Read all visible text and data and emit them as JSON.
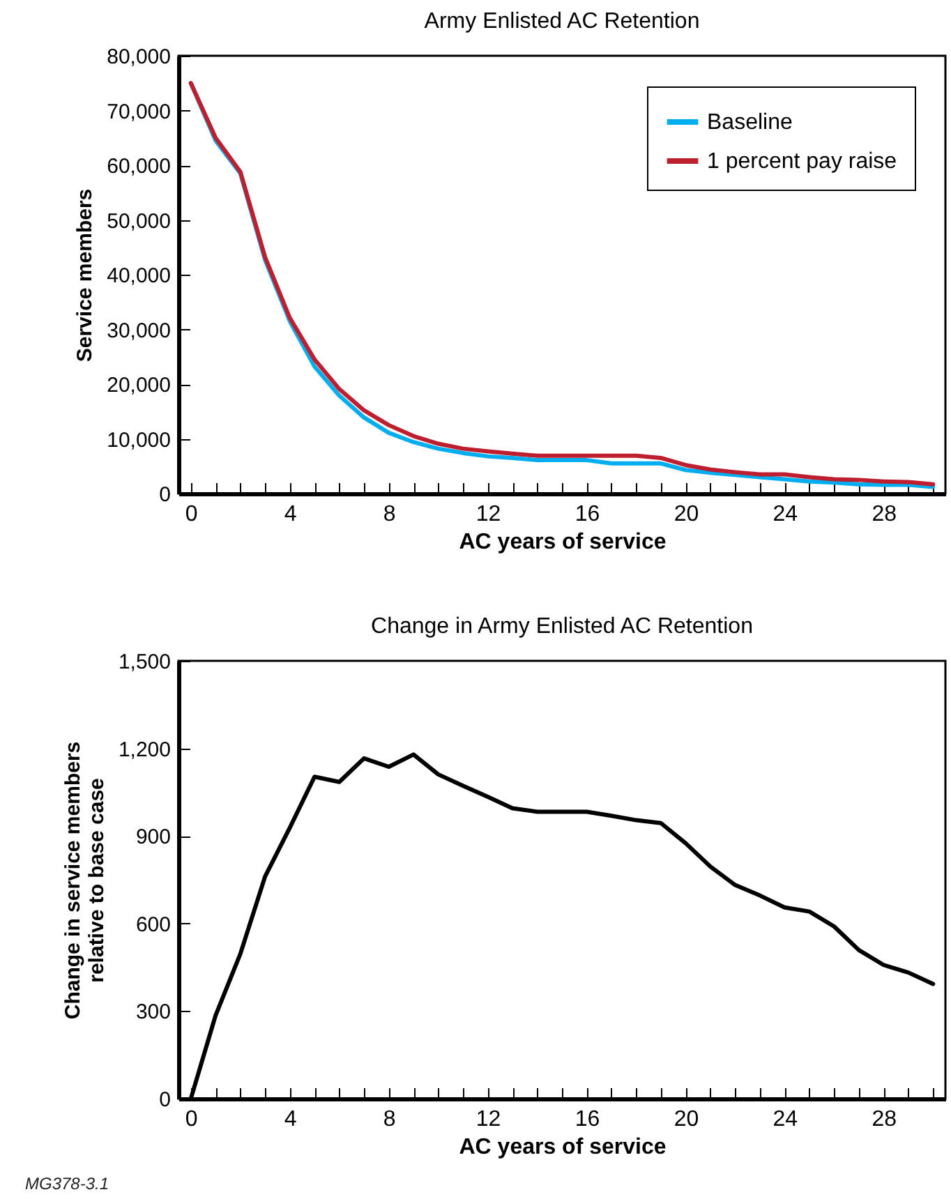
{
  "chart_data": [
    {
      "type": "line",
      "title": "Army Enlisted AC Retention",
      "xlabel": "AC years of service",
      "ylabel": "Service members",
      "x": [
        0,
        1,
        2,
        3,
        4,
        5,
        6,
        7,
        8,
        9,
        10,
        11,
        12,
        13,
        14,
        15,
        16,
        17,
        18,
        19,
        20,
        21,
        22,
        23,
        24,
        25,
        26,
        27,
        28,
        29,
        30
      ],
      "xlim": [
        -0.5,
        30.5
      ],
      "ylim": [
        0,
        80000
      ],
      "xticks": [
        0,
        {
          "value": 1,
          "label": null
        },
        {
          "value": 2,
          "label": null
        },
        {
          "value": 3,
          "label": null
        },
        4,
        {
          "value": 5,
          "label": null
        },
        {
          "value": 6,
          "label": null
        },
        {
          "value": 7,
          "label": null
        },
        8,
        {
          "value": 9,
          "label": null
        },
        {
          "value": 10,
          "label": null
        },
        {
          "value": 11,
          "label": null
        },
        12,
        {
          "value": 13,
          "label": null
        },
        {
          "value": 14,
          "label": null
        },
        {
          "value": 15,
          "label": null
        },
        16,
        {
          "value": 17,
          "label": null
        },
        {
          "value": 18,
          "label": null
        },
        {
          "value": 19,
          "label": null
        },
        20,
        {
          "value": 21,
          "label": null
        },
        {
          "value": 22,
          "label": null
        },
        {
          "value": 23,
          "label": null
        },
        24,
        {
          "value": 25,
          "label": null
        },
        {
          "value": 26,
          "label": null
        },
        {
          "value": 27,
          "label": null
        },
        28,
        {
          "value": 29,
          "label": null
        },
        {
          "value": 30,
          "label": null
        }
      ],
      "yticks": [
        0,
        {
          "value": 10000,
          "label": "10,000"
        },
        {
          "value": 20000,
          "label": "20,000"
        },
        {
          "value": 30000,
          "label": "30,000"
        },
        {
          "value": 40000,
          "label": "40,000"
        },
        {
          "value": 50000,
          "label": "50,000"
        },
        {
          "value": 60000,
          "label": "60,000"
        },
        {
          "value": 70000,
          "label": "70,000"
        },
        {
          "value": 80000,
          "label": "80,000"
        }
      ],
      "legend": "top right",
      "marker": "none",
      "line_style": "solid",
      "series": [
        {
          "name": "Baseline",
          "color": "#00aeef",
          "values": [
            75000,
            64500,
            58500,
            42700,
            31500,
            23200,
            17900,
            13900,
            11100,
            9400,
            8200,
            7400,
            6800,
            6500,
            6100,
            6100,
            6100,
            5500,
            5500,
            5500,
            4300,
            3800,
            3400,
            3000,
            2600,
            2200,
            2000,
            1700,
            1600,
            1600,
            1200
          ]
        },
        {
          "name": "1 percent pay raise",
          "color": "#be1e2d",
          "values": [
            75000,
            65000,
            58800,
            43200,
            32100,
            24500,
            19100,
            15200,
            12500,
            10500,
            9100,
            8200,
            7700,
            7300,
            6900,
            6900,
            6900,
            6900,
            6900,
            6500,
            5200,
            4400,
            3900,
            3500,
            3500,
            3000,
            2600,
            2500,
            2200,
            2100,
            1700
          ]
        }
      ]
    },
    {
      "type": "line",
      "title": "Change in Army Enlisted AC Retention",
      "xlabel": "AC years of service",
      "ylabel": "Change in service members\nrelative to base case",
      "x": [
        0,
        1,
        2,
        3,
        4,
        5,
        6,
        7,
        8,
        9,
        10,
        11,
        12,
        13,
        14,
        15,
        16,
        17,
        18,
        19,
        20,
        21,
        22,
        23,
        24,
        25,
        26,
        27,
        28,
        29,
        30
      ],
      "xlim": [
        -0.5,
        30.5
      ],
      "ylim": [
        0,
        1500
      ],
      "xticks": [
        0,
        {
          "value": 1,
          "label": null
        },
        {
          "value": 2,
          "label": null
        },
        {
          "value": 3,
          "label": null
        },
        4,
        {
          "value": 5,
          "label": null
        },
        {
          "value": 6,
          "label": null
        },
        {
          "value": 7,
          "label": null
        },
        8,
        {
          "value": 9,
          "label": null
        },
        {
          "value": 10,
          "label": null
        },
        {
          "value": 11,
          "label": null
        },
        12,
        {
          "value": 13,
          "label": null
        },
        {
          "value": 14,
          "label": null
        },
        {
          "value": 15,
          "label": null
        },
        16,
        {
          "value": 17,
          "label": null
        },
        {
          "value": 18,
          "label": null
        },
        {
          "value": 19,
          "label": null
        },
        20,
        {
          "value": 21,
          "label": null
        },
        {
          "value": 22,
          "label": null
        },
        {
          "value": 23,
          "label": null
        },
        24,
        {
          "value": 25,
          "label": null
        },
        {
          "value": 26,
          "label": null
        },
        {
          "value": 27,
          "label": null
        },
        28,
        {
          "value": 29,
          "label": null
        },
        {
          "value": 30,
          "label": null
        }
      ],
      "yticks": [
        0,
        300,
        600,
        900,
        {
          "value": 1200,
          "label": "1,200"
        },
        {
          "value": 1500,
          "label": "1,500"
        }
      ],
      "marker": "none",
      "line_style": "solid",
      "annotations": [
        "MG378-3.1"
      ],
      "series": [
        {
          "color": "#000000",
          "values": [
            0,
            285,
            496,
            761,
            928,
            1103,
            1085,
            1166,
            1137,
            1179,
            1111,
            1072,
            1034,
            995,
            983,
            983,
            983,
            969,
            954,
            944,
            875,
            795,
            732,
            696,
            655,
            641,
            590,
            509,
            458,
            432,
            393
          ]
        }
      ]
    }
  ]
}
